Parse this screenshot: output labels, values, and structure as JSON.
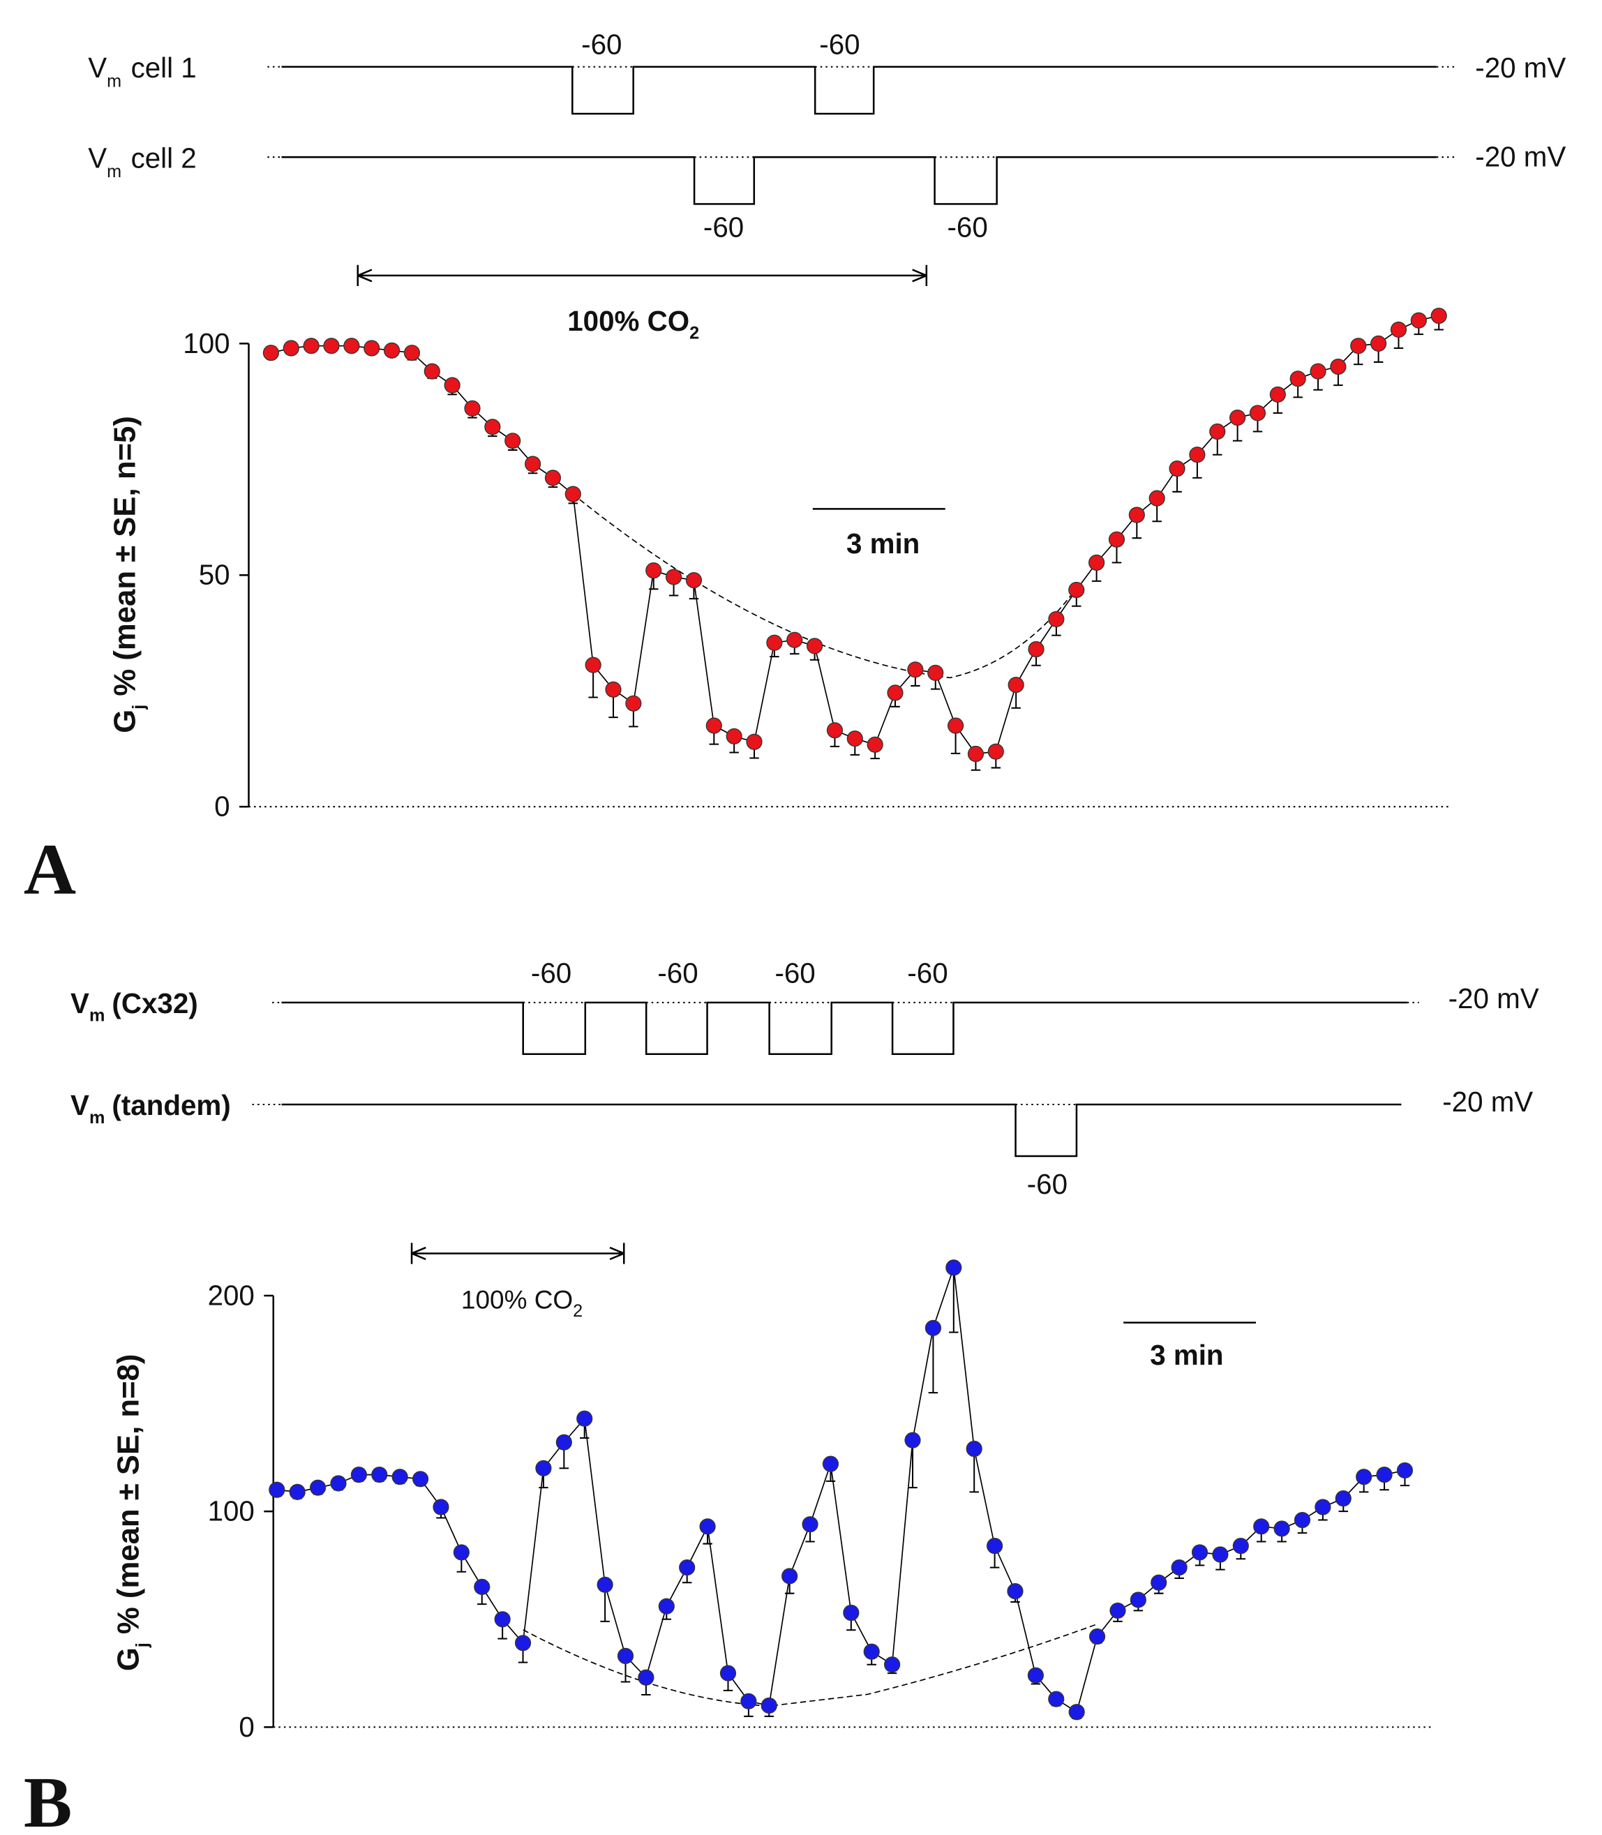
{
  "chart_data": [
    {
      "type": "line",
      "panel_label": "A",
      "protocol": [
        {
          "label": {
            "v": "V",
            "sub": "m",
            "rest": "cell 1"
          },
          "pulses": [
            "-60",
            "-60"
          ],
          "holding": "-20 mV"
        },
        {
          "label": {
            "v": "V",
            "sub": "m",
            "rest": "cell 2"
          },
          "pulses": [
            "-60",
            "-60"
          ],
          "holding": "-20 mV"
        }
      ],
      "co2": {
        "text": "100% CO",
        "sub": "2"
      },
      "scale_bar": "3 min",
      "y_label": {
        "main": "G",
        "sub": "j",
        "rest": " % (mean ± SE, n=5)"
      },
      "ylim": [
        0,
        100
      ],
      "yticks": [
        0,
        50,
        100
      ],
      "series": [
        {
          "color": "#e8141b",
          "values": [
            98,
            99,
            99.5,
            99.5,
            99.5,
            99,
            98.5,
            98,
            94,
            91,
            86,
            82,
            79,
            74,
            71,
            67.5,
            30.6,
            25.3,
            22.3,
            51,
            49.6,
            48.9,
            17.5,
            15.2,
            14,
            35.4,
            36,
            34.7,
            16.5,
            14.7,
            13.4,
            24.6,
            29.6,
            28.9,
            17.5,
            11.4,
            11.9,
            26.3,
            34,
            40.5,
            46.8,
            52.7,
            57.7,
            63,
            66.6,
            73,
            76,
            81,
            84,
            85,
            89,
            92.4,
            94,
            95,
            99.5,
            100,
            103,
            105,
            106
          ],
          "errors": [
            1,
            1,
            1,
            1,
            1,
            1,
            1,
            1.5,
            1.5,
            2,
            2,
            2,
            2,
            2,
            2,
            2,
            7,
            6,
            5,
            4,
            4,
            4,
            4,
            3.5,
            3.5,
            3,
            3,
            3,
            3.5,
            3.5,
            3,
            3,
            3.5,
            3.5,
            6,
            3.5,
            3.5,
            5,
            3.5,
            3.5,
            3.5,
            4,
            5,
            5,
            5,
            5,
            5,
            5,
            5,
            4,
            4,
            4,
            4,
            4,
            4,
            4,
            4,
            3,
            3
          ]
        }
      ]
    },
    {
      "type": "line",
      "panel_label": "B",
      "protocol": [
        {
          "label": {
            "v": "V",
            "sub": "m",
            "rest": "(Cx32)"
          },
          "pulses": [
            "-60",
            "-60",
            "-60",
            "-60"
          ],
          "holding": "-20 mV"
        },
        {
          "label": {
            "v": "V",
            "sub": "m",
            "rest": "(tandem)"
          },
          "pulses": [
            "-60"
          ],
          "holding": "-20 mV"
        }
      ],
      "co2": {
        "text": "100% CO",
        "sub": "2"
      },
      "scale_bar": "3 min",
      "y_label": {
        "main": "G",
        "sub": "j",
        "rest": " % (mean ± SE, n=8)"
      },
      "ylim": [
        0,
        200
      ],
      "yticks": [
        0,
        100,
        200
      ],
      "series": [
        {
          "color": "#1a1ae6",
          "values": [
            110,
            109,
            111,
            113,
            117,
            117,
            116,
            115,
            102,
            81,
            65,
            50,
            39,
            120,
            132,
            143,
            66,
            33,
            23,
            56,
            74,
            93,
            25,
            12,
            10,
            70,
            94,
            122,
            53,
            35,
            29,
            133,
            185,
            213,
            129,
            84,
            63,
            24,
            13,
            7,
            42,
            54,
            59,
            67,
            74,
            81,
            80,
            84,
            93,
            92,
            96,
            102,
            106,
            116,
            117,
            119
          ],
          "errors": [
            3,
            3,
            3,
            3,
            3,
            3,
            3,
            3,
            5,
            9,
            8,
            9,
            9,
            9,
            12,
            9,
            17,
            12,
            8,
            6,
            7,
            8,
            8,
            7,
            5,
            8,
            8,
            8,
            8,
            6,
            4,
            22,
            30,
            30,
            20,
            10,
            5,
            4,
            3,
            3,
            3,
            5,
            5,
            5,
            5,
            6,
            7,
            6,
            7,
            6,
            6,
            6,
            6,
            7,
            7,
            7
          ]
        }
      ]
    }
  ]
}
